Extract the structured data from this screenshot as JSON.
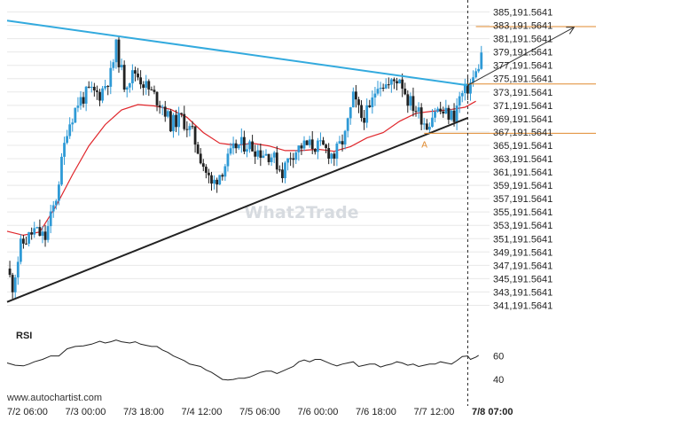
{
  "source": "www.autochartist.com",
  "watermark": "What2Trade",
  "colors": {
    "up": "#2f9ad6",
    "down": "#222222",
    "ma": "#e0262b",
    "resistance": "#33aade",
    "support": "#222222",
    "levels": "#e08a2e",
    "projection": "#333333",
    "grid": "#e8e8e8"
  },
  "chart_data": [
    {
      "type": "candlestick",
      "title": "",
      "y_ticks": [
        "385,191.5641",
        "383,191.5641",
        "381,191.5641",
        "379,191.5641",
        "377,191.5641",
        "375,191.5641",
        "373,191.5641",
        "371,191.5641",
        "369,191.5641",
        "367,191.5641",
        "365,191.5641",
        "363,191.5641",
        "361,191.5641",
        "359,191.5641",
        "357,191.5641",
        "355,191.5641",
        "353,191.5641",
        "351,191.5641",
        "349,191.5641",
        "347,191.5641",
        "345,191.5641",
        "343,191.5641",
        "341,191.5641"
      ],
      "ylim": [
        340191.5641,
        386191.5641
      ],
      "x_ticks": [
        "7/2 06:00",
        "7/3 00:00",
        "7/3 18:00",
        "7/4 12:00",
        "7/5 06:00",
        "7/6 00:00",
        "7/6 18:00",
        "7/7 12:00",
        "7/8 07:00"
      ],
      "x_range_hours": [
        0,
        177
      ],
      "current_time_hours": 169,
      "anchors": [
        [
          0,
          346700
        ],
        [
          2,
          344100
        ],
        [
          5,
          350100
        ],
        [
          10,
          352400
        ],
        [
          14,
          351300
        ],
        [
          18,
          357400
        ],
        [
          22,
          367700
        ],
        [
          26,
          371600
        ],
        [
          30,
          373200
        ],
        [
          34,
          372900
        ],
        [
          38,
          375800
        ],
        [
          40,
          379900
        ],
        [
          43,
          374400
        ],
        [
          47,
          376200
        ],
        [
          52,
          373500
        ],
        [
          57,
          371200
        ],
        [
          60,
          368400
        ],
        [
          64,
          369300
        ],
        [
          68,
          366900
        ],
        [
          72,
          362300
        ],
        [
          75,
          359100
        ],
        [
          79,
          361600
        ],
        [
          84,
          365100
        ],
        [
          88,
          365400
        ],
        [
          93,
          364200
        ],
        [
          97,
          363700
        ],
        [
          101,
          361200
        ],
        [
          104,
          363800
        ],
        [
          108,
          365100
        ],
        [
          112,
          365200
        ],
        [
          116,
          364800
        ],
        [
          120,
          363600
        ],
        [
          124,
          366600
        ],
        [
          127,
          372300
        ],
        [
          130,
          369400
        ],
        [
          133,
          370300
        ],
        [
          136,
          374800
        ],
        [
          140,
          374100
        ],
        [
          144,
          375500
        ],
        [
          147,
          372100
        ],
        [
          151,
          370100
        ],
        [
          154,
          368200
        ],
        [
          157,
          370600
        ],
        [
          161,
          369900
        ],
        [
          164,
          369600
        ],
        [
          166,
          372300
        ],
        [
          169,
          373800
        ],
        [
          172,
          375900
        ],
        [
          174,
          378700
        ]
      ],
      "moving_average": [
        [
          0,
          352300
        ],
        [
          6,
          351700
        ],
        [
          12,
          352200
        ],
        [
          18,
          356100
        ],
        [
          24,
          360800
        ],
        [
          30,
          365100
        ],
        [
          36,
          368300
        ],
        [
          42,
          370500
        ],
        [
          48,
          371300
        ],
        [
          54,
          371100
        ],
        [
          60,
          370600
        ],
        [
          66,
          369400
        ],
        [
          72,
          367100
        ],
        [
          78,
          365500
        ],
        [
          84,
          365200
        ],
        [
          90,
          365500
        ],
        [
          96,
          365100
        ],
        [
          102,
          364400
        ],
        [
          108,
          364400
        ],
        [
          114,
          364600
        ],
        [
          120,
          364300
        ],
        [
          126,
          365000
        ],
        [
          132,
          366300
        ],
        [
          138,
          367100
        ],
        [
          144,
          368800
        ],
        [
          150,
          370000
        ],
        [
          156,
          370300
        ],
        [
          162,
          370500
        ],
        [
          168,
          370900
        ],
        [
          172,
          371800
        ]
      ],
      "resistance_line": {
        "from": [
          0,
          383900
        ],
        "to": [
          169,
          374200
        ]
      },
      "support_line": {
        "from": [
          0,
          341700
        ],
        "to": [
          169,
          369300
        ]
      },
      "levels": [
        {
          "value": 383000,
          "from_hours": 172
        },
        {
          "value": 374400,
          "from_hours": 169
        },
        {
          "value": 367000,
          "from_hours": 153
        }
      ],
      "projection": {
        "from": [
          169,
          374200
        ],
        "to": [
          208,
          382900
        ]
      },
      "point_label": {
        "text": "A",
        "at": [
          153,
          365400
        ]
      }
    },
    {
      "type": "line",
      "title": "RSI",
      "y_ticks": [
        "60",
        "40"
      ],
      "ylim": [
        34,
        74
      ],
      "values": [
        [
          0,
          54
        ],
        [
          3,
          52
        ],
        [
          6,
          51.5
        ],
        [
          8,
          53
        ],
        [
          10,
          55
        ],
        [
          13,
          57
        ],
        [
          16,
          60
        ],
        [
          19,
          60
        ],
        [
          22,
          66
        ],
        [
          25,
          68
        ],
        [
          28,
          68.5
        ],
        [
          31,
          70
        ],
        [
          34,
          72.5
        ],
        [
          36,
          71
        ],
        [
          38,
          72
        ],
        [
          40,
          73.5
        ],
        [
          42,
          72
        ],
        [
          45,
          71
        ],
        [
          47,
          72
        ],
        [
          49,
          70
        ],
        [
          51,
          69
        ],
        [
          53,
          68
        ],
        [
          55,
          68
        ],
        [
          57,
          65
        ],
        [
          59,
          63
        ],
        [
          61,
          60
        ],
        [
          63,
          58
        ],
        [
          65,
          56
        ],
        [
          67,
          53
        ],
        [
          69,
          52
        ],
        [
          71,
          51
        ],
        [
          73,
          48
        ],
        [
          75,
          46
        ],
        [
          77,
          43
        ],
        [
          79,
          40
        ],
        [
          81,
          39.5
        ],
        [
          83,
          40
        ],
        [
          85,
          41
        ],
        [
          87,
          41
        ],
        [
          89,
          42
        ],
        [
          91,
          44
        ],
        [
          93,
          46
        ],
        [
          95,
          47
        ],
        [
          97,
          47
        ],
        [
          99,
          45
        ],
        [
          101,
          47
        ],
        [
          103,
          49
        ],
        [
          105,
          51
        ],
        [
          107,
          55
        ],
        [
          109,
          56.5
        ],
        [
          111,
          55
        ],
        [
          113,
          57
        ],
        [
          115,
          57
        ],
        [
          117,
          55
        ],
        [
          119,
          53
        ],
        [
          121,
          51.5
        ],
        [
          123,
          53
        ],
        [
          125,
          54
        ],
        [
          127,
          55
        ],
        [
          129,
          51
        ],
        [
          131,
          52
        ],
        [
          133,
          53
        ],
        [
          135,
          53
        ],
        [
          137,
          50.5
        ],
        [
          139,
          52
        ],
        [
          141,
          53
        ],
        [
          143,
          55
        ],
        [
          145,
          54
        ],
        [
          147,
          52
        ],
        [
          149,
          53
        ],
        [
          151,
          51
        ],
        [
          153,
          52
        ],
        [
          155,
          53
        ],
        [
          157,
          53
        ],
        [
          159,
          55
        ],
        [
          161,
          54
        ],
        [
          163,
          53
        ],
        [
          165,
          56
        ],
        [
          167,
          59.5
        ],
        [
          169,
          60
        ],
        [
          170,
          57
        ],
        [
          172,
          59
        ],
        [
          173,
          60.5
        ]
      ]
    }
  ]
}
